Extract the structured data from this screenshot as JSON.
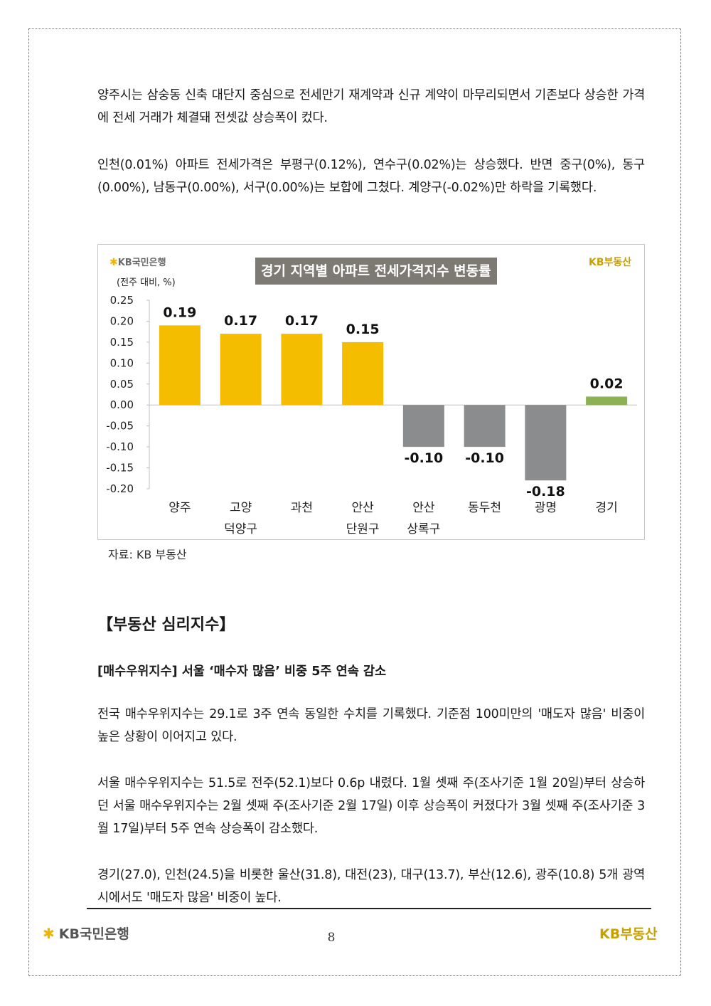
{
  "paragraphs": {
    "p1": "양주시는 삼숭동 신축 대단지 중심으로 전세만기 재계약과 신규 계약이 마무리되면서 기존보다 상승한 가격에 전세 거래가 체결돼 전셋값 상승폭이 컸다.",
    "p2": "인천(0.01%) 아파트 전세가격은 부평구(0.12%), 연수구(0.02%)는 상승했다. 반면 중구(0%), 동구(0.00%), 남동구(0.00%), 서구(0.00%)는 보합에 그쳤다. 계양구(-0.02%)만 하락을 기록했다.",
    "p3": "전국 매수우위지수는 29.1로 3주 연속 동일한 수치를 기록했다. 기준점 100미만의 '매도자 많음' 비중이 높은 상황이 이어지고 있다.",
    "p4": "서울 매수우위지수는 51.5로 전주(52.1)보다 0.6p 내렸다. 1월 셋째 주(조사기준 1월 20일)부터 상승하던 서울 매수우위지수는 2월 셋째 주(조사기준 2월 17일) 이후 상승폭이 커졌다가 3월 셋째 주(조사기준 3월 17일)부터 5주 연속 상승폭이 감소했다.",
    "p5": "경기(27.0), 인천(24.5)을 비롯한 울산(31.8), 대전(23), 대구(13.7), 부산(12.6), 광주(10.8) 5개 광역시에서도 '매도자 많음' 비중이 높다."
  },
  "chart_header": {
    "left_brand": "KB국민은행",
    "right_brand": "KB부동산"
  },
  "source_note": "자료: KB 부동산",
  "section": {
    "title": "【부동산 심리지수】",
    "subtitle": "[매수우위지수] 서울 ‘매수자 많음’ 비중 5주 연속 감소"
  },
  "footer": {
    "left_brand": "KB국민은행",
    "right_brand": "KB부동산",
    "page_number": "8"
  },
  "colors": {
    "positive_bar": "#f5bd00",
    "negative_bar": "#8a8c8e",
    "total_bar": "#8cb054",
    "brand_gold": "#c8a000"
  },
  "chart_data": {
    "type": "bar",
    "title": "경기 지역별 아파트 전세가격지수 변동률",
    "ylabel": "(전주 대비, %)",
    "categories": [
      [
        "양주"
      ],
      [
        "고양",
        "덕양구"
      ],
      [
        "과천"
      ],
      [
        "안산",
        "단원구"
      ],
      [
        "안산",
        "상록구"
      ],
      [
        "동두천"
      ],
      [
        "광명"
      ],
      [
        "경기"
      ]
    ],
    "values": [
      0.19,
      0.17,
      0.17,
      0.15,
      -0.1,
      -0.1,
      -0.18,
      0.02
    ],
    "value_labels": [
      "0.19",
      "0.17",
      "0.17",
      "0.15",
      "-0.10",
      "-0.10",
      "-0.18",
      "0.02"
    ],
    "yticks": [
      "0.25",
      "0.20",
      "0.15",
      "0.10",
      "0.05",
      "0.00",
      "-0.05",
      "-0.10",
      "-0.15",
      "-0.20"
    ],
    "ylim": [
      -0.2,
      0.25
    ],
    "grid": false,
    "legend": "none"
  }
}
